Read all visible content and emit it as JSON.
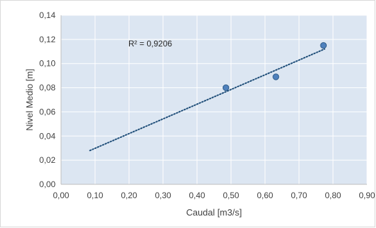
{
  "chart_data": {
    "type": "scatter",
    "title": "",
    "xlabel": "Caudal [m3/s]",
    "ylabel": "Nivel Medio [m]",
    "xlim": [
      0,
      0.9
    ],
    "ylim": [
      0,
      0.14
    ],
    "x_ticks": [
      "0,00",
      "0,10",
      "0,20",
      "0,30",
      "0,40",
      "0,50",
      "0,60",
      "0,70",
      "0,80",
      "0,90"
    ],
    "y_ticks": [
      "0,00",
      "0,02",
      "0,04",
      "0,06",
      "0,08",
      "0,10",
      "0,12",
      "0,14"
    ],
    "grid": true,
    "legend": "none",
    "series": [
      {
        "points": [
          {
            "x": 0.485,
            "y": 0.08
          },
          {
            "x": 0.632,
            "y": 0.089
          },
          {
            "x": 0.772,
            "y": 0.115
          }
        ]
      }
    ],
    "trendline": {
      "type": "linear",
      "style": "dotted",
      "from": {
        "x": 0.085,
        "y": 0.028
      },
      "to": {
        "x": 0.775,
        "y": 0.112
      },
      "r2_label": "R² = 0,9206"
    },
    "colors": {
      "plot_background": "#dce6f2",
      "grid": "#ffffff",
      "marker_fill": "#4f81bd",
      "marker_stroke": "#2e5c8a",
      "trendline": "#1f4e79"
    }
  }
}
